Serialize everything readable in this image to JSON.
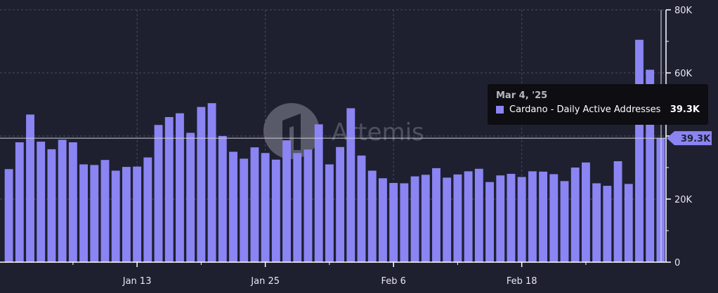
{
  "chart_data": {
    "type": "bar",
    "series": [
      {
        "name": "Cardano - Daily Active Addresses",
        "values": [
          29500,
          38000,
          46800,
          38200,
          35800,
          38800,
          38000,
          31000,
          30800,
          32400,
          29000,
          30200,
          30300,
          33200,
          43500,
          46000,
          47200,
          41000,
          49200,
          50400,
          40000,
          35000,
          32800,
          36400,
          34600,
          32500,
          38600,
          34600,
          35700,
          43700,
          31000,
          36500,
          48800,
          33800,
          29000,
          26600,
          25100,
          25000,
          27200,
          27700,
          29800,
          26800,
          27800,
          28800,
          29600,
          25400,
          27500,
          28000,
          27000,
          28800,
          28700,
          27900,
          25700,
          30000,
          31600,
          25000,
          24200,
          32000,
          24800,
          70500,
          61000,
          39300
        ]
      }
    ],
    "x_tick_labels": [
      "Jan 13",
      "Jan 25",
      "Feb 6",
      "Feb 18"
    ],
    "x_tick_indices": [
      12,
      24,
      36,
      48
    ],
    "y_tick_labels": [
      "0",
      "20K",
      "40K",
      "60K",
      "80K"
    ],
    "y_tick_values": [
      0,
      20000,
      40000,
      60000,
      80000
    ],
    "ylim": [
      0,
      80000
    ],
    "grid": true,
    "current_value_label": "39.3K",
    "current_value": 39300,
    "tooltip": {
      "date": "Mar 4, '25",
      "series": "Cardano - Daily Active Addresses",
      "value": "39.3K"
    },
    "watermark": "Artemis",
    "colors": {
      "bar": "#8b84f3",
      "background": "#1e2030",
      "grid": "#4a4c5c"
    }
  }
}
